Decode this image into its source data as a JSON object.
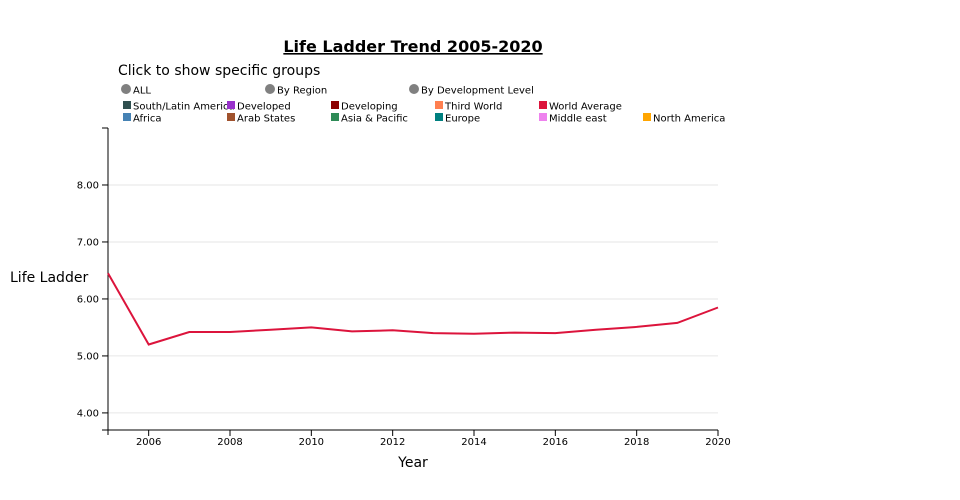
{
  "chart_data": {
    "type": "line",
    "title": "Life Ladder Trend  2005-2020",
    "subtitle": "Click to show specific groups",
    "xlabel": "Year",
    "ylabel": "Life Ladder",
    "xlim": [
      2005,
      2020
    ],
    "ylim": [
      3.7,
      9.0
    ],
    "x_ticks": [
      2006,
      2008,
      2010,
      2012,
      2014,
      2016,
      2018,
      2020
    ],
    "y_ticks": [
      "4.00",
      "5.00",
      "6.00",
      "7.00",
      "8.00"
    ],
    "y_tick_values": [
      4,
      5,
      6,
      7,
      8
    ],
    "grid": "horizontal",
    "filter_buttons": [
      {
        "label": "ALL",
        "color": "#808080"
      },
      {
        "label": "By Region",
        "color": "#808080"
      },
      {
        "label": "By Development Level",
        "color": "#808080"
      }
    ],
    "legend": [
      {
        "label": "South/Latin America",
        "color": "#2f4f4f"
      },
      {
        "label": "Developed",
        "color": "#9932cc"
      },
      {
        "label": "Developing",
        "color": "#8b0000"
      },
      {
        "label": "Third World",
        "color": "#ff7f50"
      },
      {
        "label": "World Average",
        "color": "#dc143c"
      },
      {
        "label": "Africa",
        "color": "#4682b4"
      },
      {
        "label": "Arab States",
        "color": "#a0522d"
      },
      {
        "label": "Asia & Pacific",
        "color": "#2e8b57"
      },
      {
        "label": "Europe",
        "color": "#008080"
      },
      {
        "label": "Middle east",
        "color": "#ee82ee"
      },
      {
        "label": "North America",
        "color": "#ffa500"
      }
    ],
    "series": [
      {
        "name": "World Average",
        "color": "#dc143c",
        "x": [
          2005,
          2006,
          2007,
          2008,
          2009,
          2010,
          2011,
          2012,
          2013,
          2014,
          2015,
          2016,
          2017,
          2018,
          2019,
          2020
        ],
        "values": [
          6.45,
          5.2,
          5.42,
          5.42,
          5.46,
          5.5,
          5.43,
          5.45,
          5.4,
          5.39,
          5.41,
          5.4,
          5.46,
          5.51,
          5.58,
          5.85
        ]
      }
    ]
  }
}
